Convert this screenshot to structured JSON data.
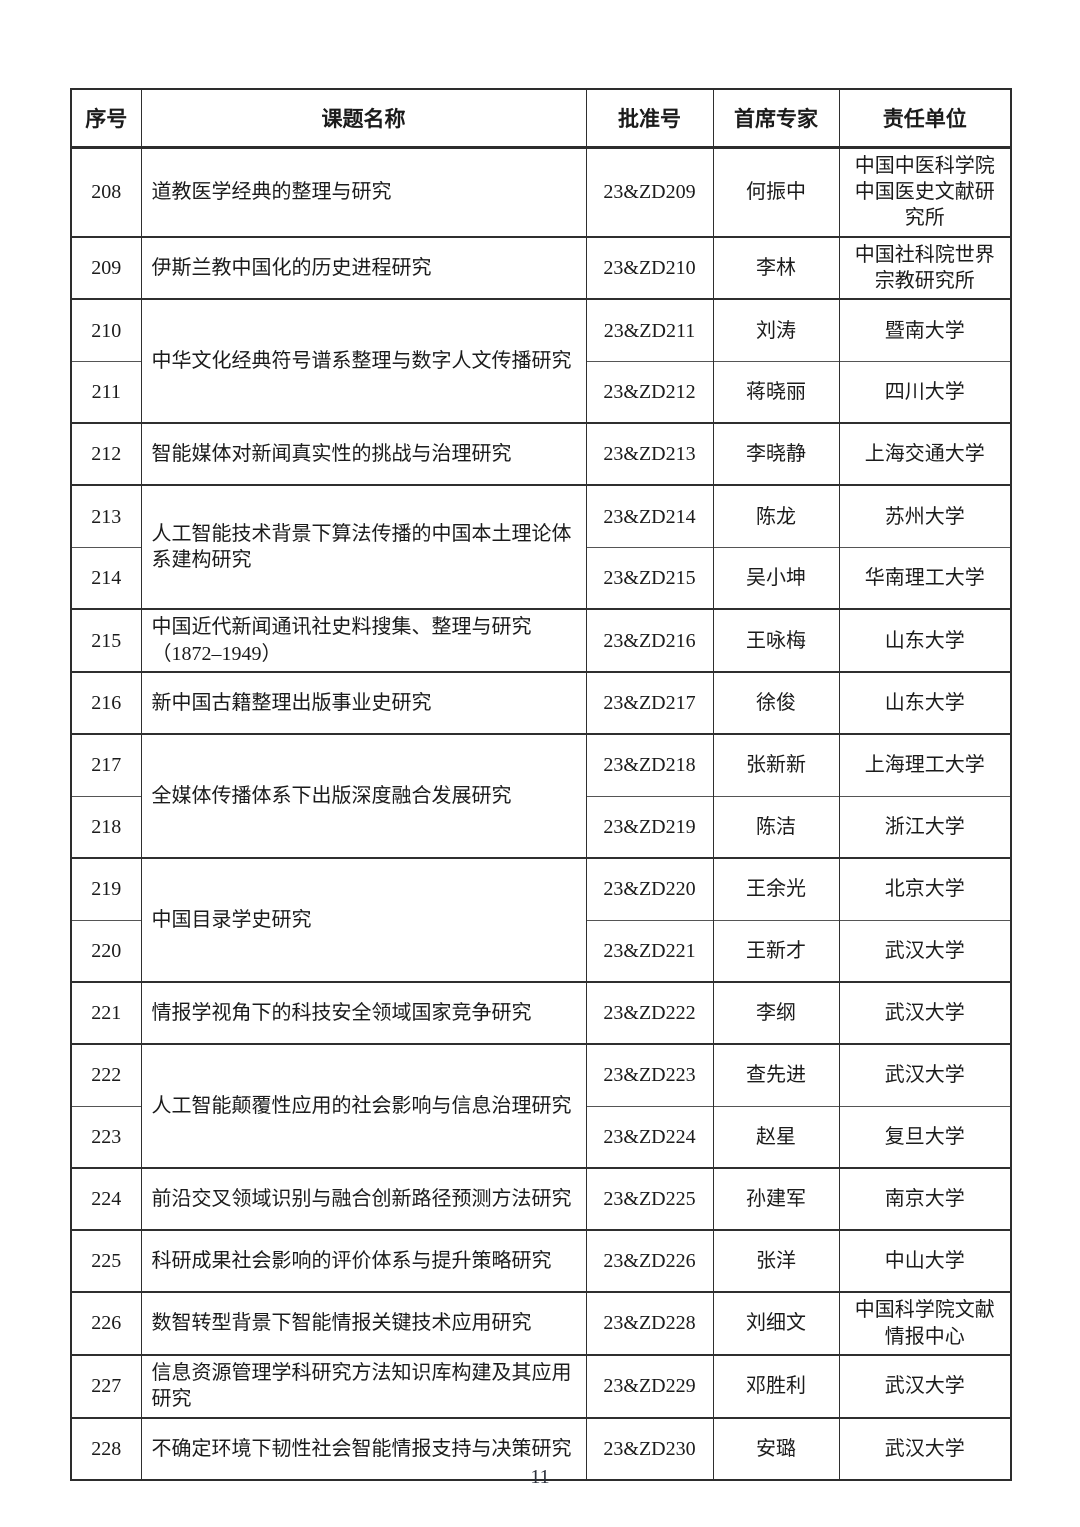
{
  "page_number": "11",
  "table": {
    "headers": [
      "序号",
      "课题名称",
      "批准号",
      "首席专家",
      "责任单位"
    ],
    "groups": [
      {
        "title": "道教医学经典的整理与研究",
        "rows": [
          {
            "no": "208",
            "approval": "23&ZD209",
            "expert": "何振中",
            "unit": "中国中医科学院中国医史文献研究所"
          }
        ]
      },
      {
        "title": "伊斯兰教中国化的历史进程研究",
        "rows": [
          {
            "no": "209",
            "approval": "23&ZD210",
            "expert": "李林",
            "unit": "中国社科院世界宗教研究所"
          }
        ]
      },
      {
        "title": "中华文化经典符号谱系整理与数字人文传播研究",
        "rows": [
          {
            "no": "210",
            "approval": "23&ZD211",
            "expert": "刘涛",
            "unit": "暨南大学"
          },
          {
            "no": "211",
            "approval": "23&ZD212",
            "expert": "蒋晓丽",
            "unit": "四川大学"
          }
        ]
      },
      {
        "title": "智能媒体对新闻真实性的挑战与治理研究",
        "rows": [
          {
            "no": "212",
            "approval": "23&ZD213",
            "expert": "李晓静",
            "unit": "上海交通大学"
          }
        ]
      },
      {
        "title": "人工智能技术背景下算法传播的中国本土理论体系建构研究",
        "rows": [
          {
            "no": "213",
            "approval": "23&ZD214",
            "expert": "陈龙",
            "unit": "苏州大学"
          },
          {
            "no": "214",
            "approval": "23&ZD215",
            "expert": "吴小坤",
            "unit": "华南理工大学"
          }
        ]
      },
      {
        "title": "中国近代新闻通讯社史料搜集、整理与研究（1872–1949）",
        "rows": [
          {
            "no": "215",
            "approval": "23&ZD216",
            "expert": "王咏梅",
            "unit": "山东大学"
          }
        ]
      },
      {
        "title": "新中国古籍整理出版事业史研究",
        "rows": [
          {
            "no": "216",
            "approval": "23&ZD217",
            "expert": "徐俊",
            "unit": "山东大学"
          }
        ]
      },
      {
        "title": "全媒体传播体系下出版深度融合发展研究",
        "rows": [
          {
            "no": "217",
            "approval": "23&ZD218",
            "expert": "张新新",
            "unit": "上海理工大学"
          },
          {
            "no": "218",
            "approval": "23&ZD219",
            "expert": "陈洁",
            "unit": "浙江大学"
          }
        ]
      },
      {
        "title": "中国目录学史研究",
        "rows": [
          {
            "no": "219",
            "approval": "23&ZD220",
            "expert": "王余光",
            "unit": "北京大学"
          },
          {
            "no": "220",
            "approval": "23&ZD221",
            "expert": "王新才",
            "unit": "武汉大学"
          }
        ]
      },
      {
        "title": "情报学视角下的科技安全领域国家竞争研究",
        "rows": [
          {
            "no": "221",
            "approval": "23&ZD222",
            "expert": "李纲",
            "unit": "武汉大学"
          }
        ]
      },
      {
        "title": "人工智能颠覆性应用的社会影响与信息治理研究",
        "rows": [
          {
            "no": "222",
            "approval": "23&ZD223",
            "expert": "查先进",
            "unit": "武汉大学"
          },
          {
            "no": "223",
            "approval": "23&ZD224",
            "expert": "赵星",
            "unit": "复旦大学"
          }
        ]
      },
      {
        "title": "前沿交叉领域识别与融合创新路径预测方法研究",
        "rows": [
          {
            "no": "224",
            "approval": "23&ZD225",
            "expert": "孙建军",
            "unit": "南京大学"
          }
        ]
      },
      {
        "title": "科研成果社会影响的评价体系与提升策略研究",
        "rows": [
          {
            "no": "225",
            "approval": "23&ZD226",
            "expert": "张洋",
            "unit": "中山大学"
          }
        ]
      },
      {
        "title": "数智转型背景下智能情报关键技术应用研究",
        "rows": [
          {
            "no": "226",
            "approval": "23&ZD228",
            "expert": "刘细文",
            "unit": "中国科学院文献情报中心"
          }
        ]
      },
      {
        "title": "信息资源管理学科研究方法知识库构建及其应用研究",
        "rows": [
          {
            "no": "227",
            "approval": "23&ZD229",
            "expert": "邓胜利",
            "unit": "武汉大学"
          }
        ]
      },
      {
        "title": "不确定环境下韧性社会智能情报支持与决策研究",
        "rows": [
          {
            "no": "228",
            "approval": "23&ZD230",
            "expert": "安璐",
            "unit": "武汉大学"
          }
        ]
      }
    ]
  }
}
